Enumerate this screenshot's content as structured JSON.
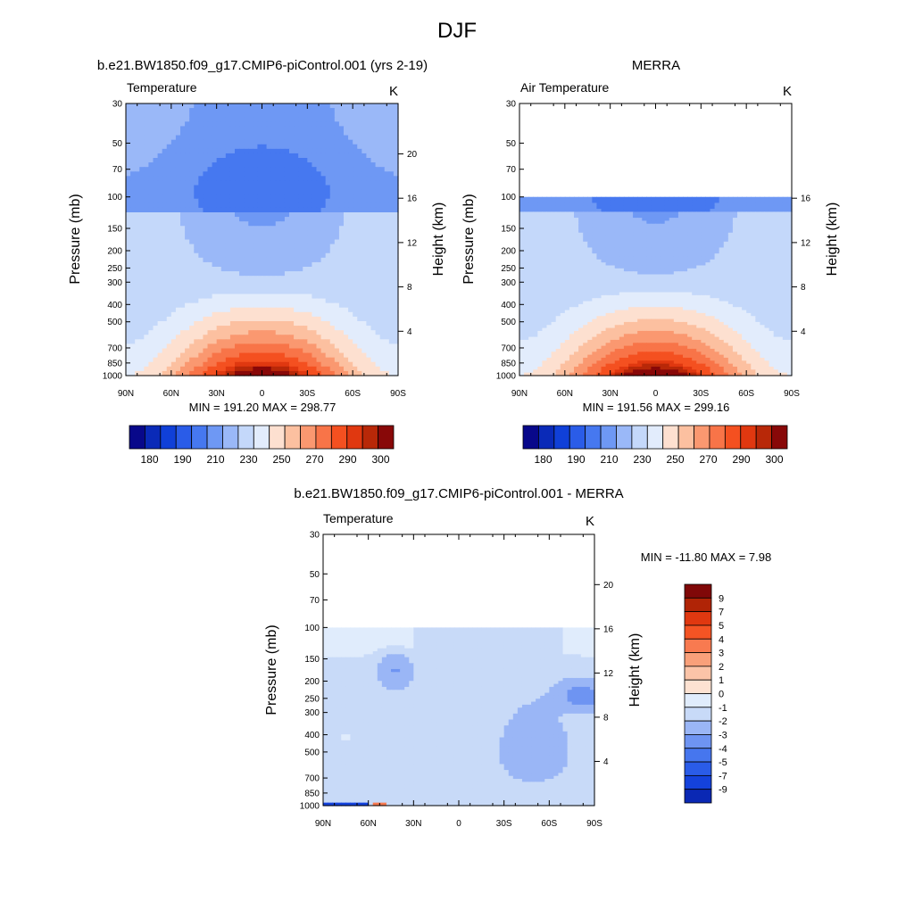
{
  "page_title": "DJF",
  "chart_data": [
    {
      "type": "heatmap",
      "id": "model",
      "title": "b.e21.BW1850.f09_g17.CMIP6-piControl.001 (yrs 2-19)",
      "subtitle_left": "Temperature",
      "subtitle_right": "K",
      "xlabel": "",
      "ylabel": "Pressure (mb)",
      "ylabel_right": "Height (km)",
      "x_ticks": [
        "90N",
        "60N",
        "30N",
        "0",
        "30S",
        "60S",
        "90S"
      ],
      "y_ticks": [
        "30",
        "50",
        "70",
        "100",
        "150",
        "200",
        "250",
        "300",
        "400",
        "500",
        "700",
        "850",
        "1000"
      ],
      "height_ticks": [
        "20",
        "16",
        "12",
        "8",
        "4"
      ],
      "minmax_label": "MIN = 191.20  MAX = 298.77",
      "min": 191.2,
      "max": 298.77,
      "units": "K",
      "top_pressure_mb": 30,
      "colorbar_orientation": "horizontal",
      "colorbar_labels": [
        "180",
        "190",
        "210",
        "230",
        "250",
        "270",
        "290",
        "300"
      ],
      "colorbar_levels": [
        175,
        180,
        185,
        190,
        200,
        210,
        220,
        230,
        240,
        250,
        260,
        270,
        280,
        290,
        295,
        300
      ]
    },
    {
      "type": "heatmap",
      "id": "obs",
      "title": "MERRA",
      "subtitle_left": "Air Temperature",
      "subtitle_right": "K",
      "xlabel": "",
      "ylabel": "Pressure (mb)",
      "ylabel_right": "Height (km)",
      "x_ticks": [
        "90N",
        "60N",
        "30N",
        "0",
        "30S",
        "60S",
        "90S"
      ],
      "y_ticks": [
        "30",
        "50",
        "70",
        "100",
        "150",
        "200",
        "250",
        "300",
        "400",
        "500",
        "700",
        "850",
        "1000"
      ],
      "height_ticks": [
        "16",
        "12",
        "8",
        "4"
      ],
      "minmax_label": "MIN = 191.56  MAX = 299.16",
      "min": 191.56,
      "max": 299.16,
      "units": "K",
      "top_pressure_mb": 100,
      "colorbar_orientation": "horizontal",
      "colorbar_labels": [
        "180",
        "190",
        "210",
        "230",
        "250",
        "270",
        "290",
        "300"
      ],
      "colorbar_levels": [
        175,
        180,
        185,
        190,
        200,
        210,
        220,
        230,
        240,
        250,
        260,
        270,
        280,
        290,
        295,
        300
      ]
    },
    {
      "type": "heatmap",
      "id": "diff",
      "title": "b.e21.BW1850.f09_g17.CMIP6-piControl.001 - MERRA",
      "subtitle_left": "Temperature",
      "subtitle_right": "K",
      "xlabel": "",
      "ylabel": "Pressure (mb)",
      "ylabel_right": "Height (km)",
      "x_ticks": [
        "90N",
        "60N",
        "30N",
        "0",
        "30S",
        "60S",
        "90S"
      ],
      "y_ticks": [
        "30",
        "50",
        "70",
        "100",
        "150",
        "200",
        "250",
        "300",
        "400",
        "500",
        "700",
        "850",
        "1000"
      ],
      "height_ticks": [
        "20",
        "16",
        "12",
        "8",
        "4"
      ],
      "minmax_label": "MIN = -11.80  MAX =   7.98",
      "min": -11.8,
      "max": 7.98,
      "units": "K",
      "top_pressure_mb": 100,
      "colorbar_orientation": "vertical",
      "colorbar_labels": [
        "9",
        "7",
        "5",
        "4",
        "3",
        "2",
        "1",
        "0",
        "-1",
        "-2",
        "-3",
        "-4",
        "-5",
        "-7",
        "-9"
      ],
      "colorbar_levels": [
        -9,
        -7,
        -5,
        -4,
        -3,
        -2,
        -1,
        0,
        1,
        2,
        3,
        4,
        5,
        7,
        9
      ]
    }
  ],
  "colors": {
    "temperature_ramp": [
      "#08088a",
      "#0a2ab8",
      "#1040d8",
      "#2a5ce8",
      "#4678f0",
      "#6e98f4",
      "#9ab8f8",
      "#c4d8fa",
      "#e2ecfc",
      "#fde0d0",
      "#fcc0a0",
      "#fa9870",
      "#f87448",
      "#f45020",
      "#e03810",
      "#b82808",
      "#880808"
    ],
    "diff_ramp": [
      "#08088a",
      "#0a28b4",
      "#1442dc",
      "#2a5ce8",
      "#4676ee",
      "#6e94f2",
      "#9ab6f6",
      "#c8daf8",
      "#e0ecfc",
      "#fde2d2",
      "#fbc4a8",
      "#f9a07a",
      "#f87a50",
      "#f45424",
      "#e03810",
      "#b02406",
      "#800808"
    ]
  }
}
